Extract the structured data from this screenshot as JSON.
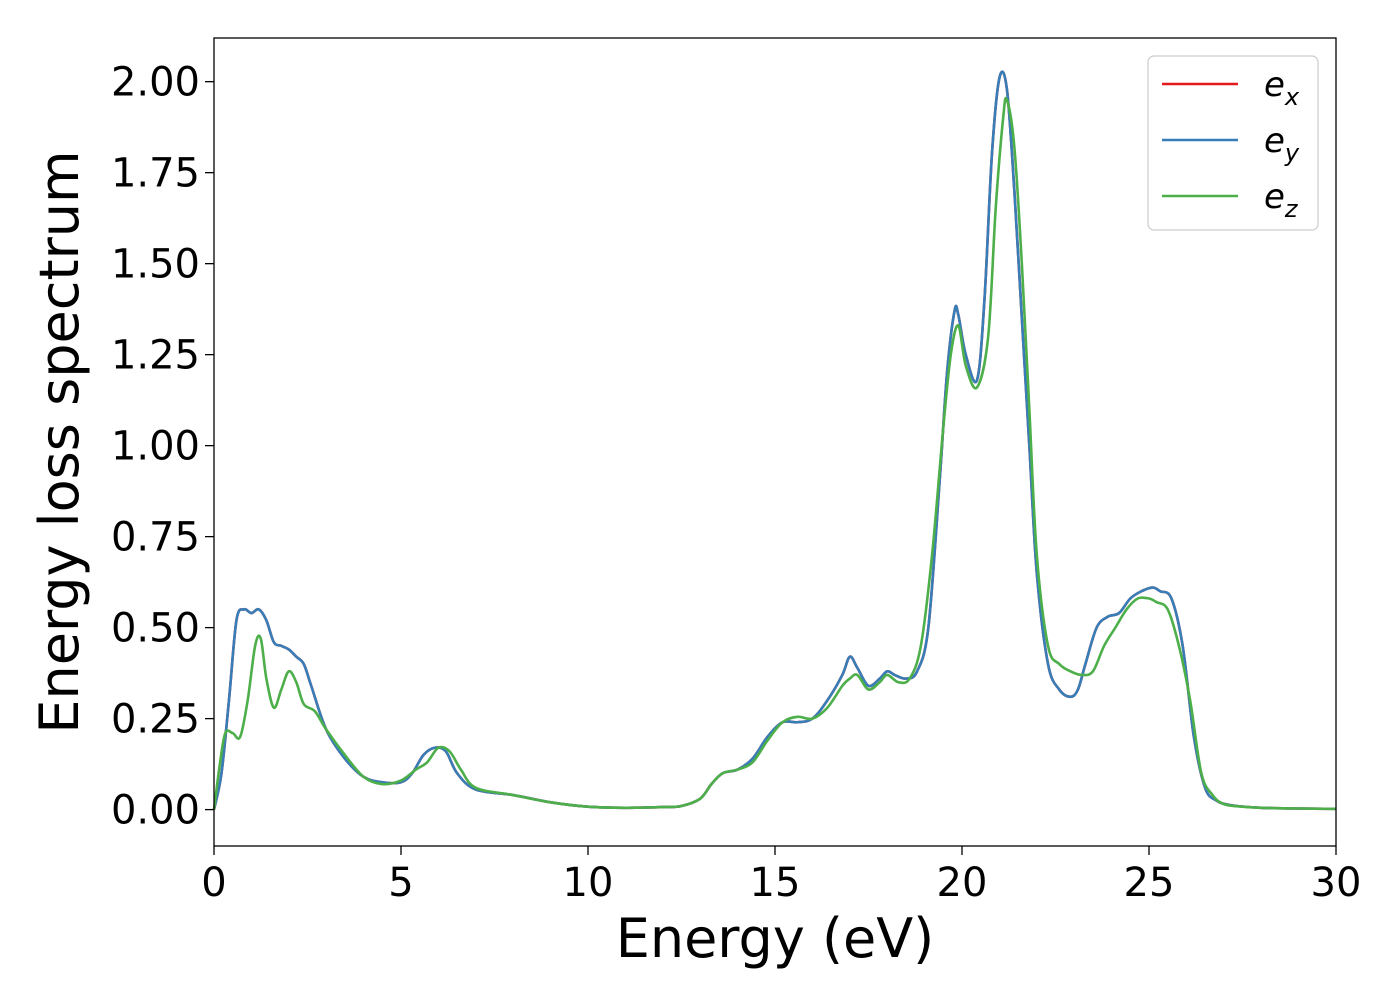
{
  "chart_data": {
    "type": "line",
    "title": "",
    "xlabel": "Energy (eV)",
    "ylabel": "Energy loss spectrum",
    "xlim": [
      0,
      30
    ],
    "ylim": [
      -0.1,
      2.12
    ],
    "xticks": [
      "0",
      "5",
      "10",
      "15",
      "20",
      "25",
      "30"
    ],
    "yticks": [
      "0.00",
      "0.25",
      "0.50",
      "0.75",
      "1.00",
      "1.25",
      "1.50",
      "1.75",
      "2.00"
    ],
    "grid": false,
    "legend_position": "top-right",
    "series": [
      {
        "name": "e_x",
        "legend_main": "e",
        "legend_sub": "x",
        "color": "#e41a1c",
        "x": [
          0,
          0.2,
          0.4,
          0.6,
          0.8,
          1.0,
          1.2,
          1.4,
          1.6,
          1.8,
          2.0,
          2.2,
          2.4,
          2.6,
          3.0,
          3.5,
          4.0,
          4.5,
          5.0,
          5.3,
          5.6,
          5.9,
          6.2,
          6.5,
          7.0,
          8.0,
          9.0,
          10.0,
          11.0,
          12.0,
          12.5,
          13.0,
          13.3,
          13.6,
          14.0,
          14.4,
          14.8,
          15.2,
          15.6,
          16.0,
          16.4,
          16.8,
          17.0,
          17.2,
          17.5,
          17.8,
          18.0,
          18.2,
          18.5,
          18.8,
          19.1,
          19.4,
          19.6,
          19.8,
          19.9,
          20.1,
          20.4,
          20.6,
          20.8,
          21.0,
          21.2,
          21.4,
          21.6,
          21.8,
          22.0,
          22.3,
          22.6,
          22.9,
          23.1,
          23.3,
          23.6,
          23.9,
          24.2,
          24.5,
          24.8,
          25.1,
          25.3,
          25.6,
          25.9,
          26.2,
          26.5,
          26.8,
          27.2,
          28.0,
          29.0,
          30.0
        ],
        "values": [
          0.0,
          0.1,
          0.3,
          0.52,
          0.55,
          0.54,
          0.55,
          0.52,
          0.46,
          0.45,
          0.44,
          0.42,
          0.4,
          0.34,
          0.22,
          0.14,
          0.09,
          0.075,
          0.075,
          0.1,
          0.15,
          0.17,
          0.16,
          0.1,
          0.055,
          0.04,
          0.02,
          0.008,
          0.005,
          0.007,
          0.01,
          0.03,
          0.07,
          0.1,
          0.11,
          0.14,
          0.2,
          0.24,
          0.24,
          0.25,
          0.3,
          0.37,
          0.42,
          0.39,
          0.34,
          0.36,
          0.38,
          0.37,
          0.36,
          0.38,
          0.5,
          0.9,
          1.2,
          1.37,
          1.36,
          1.25,
          1.18,
          1.4,
          1.8,
          2.01,
          1.98,
          1.7,
          1.35,
          1.0,
          0.65,
          0.4,
          0.33,
          0.31,
          0.33,
          0.4,
          0.5,
          0.53,
          0.54,
          0.58,
          0.6,
          0.61,
          0.6,
          0.58,
          0.45,
          0.2,
          0.06,
          0.025,
          0.012,
          0.005,
          0.003,
          0.002
        ]
      },
      {
        "name": "e_y",
        "legend_main": "e",
        "legend_sub": "y",
        "color": "#377eb8",
        "x": [
          0,
          0.2,
          0.4,
          0.6,
          0.8,
          1.0,
          1.2,
          1.4,
          1.6,
          1.8,
          2.0,
          2.2,
          2.4,
          2.6,
          3.0,
          3.5,
          4.0,
          4.5,
          5.0,
          5.3,
          5.6,
          5.9,
          6.2,
          6.5,
          7.0,
          8.0,
          9.0,
          10.0,
          11.0,
          12.0,
          12.5,
          13.0,
          13.3,
          13.6,
          14.0,
          14.4,
          14.8,
          15.2,
          15.6,
          16.0,
          16.4,
          16.8,
          17.0,
          17.2,
          17.5,
          17.8,
          18.0,
          18.2,
          18.5,
          18.8,
          19.1,
          19.4,
          19.6,
          19.8,
          19.9,
          20.1,
          20.4,
          20.6,
          20.8,
          21.0,
          21.2,
          21.4,
          21.6,
          21.8,
          22.0,
          22.3,
          22.6,
          22.9,
          23.1,
          23.3,
          23.6,
          23.9,
          24.2,
          24.5,
          24.8,
          25.1,
          25.3,
          25.6,
          25.9,
          26.2,
          26.5,
          26.8,
          27.2,
          28.0,
          29.0,
          30.0
        ],
        "values": [
          0.0,
          0.1,
          0.3,
          0.52,
          0.55,
          0.54,
          0.55,
          0.52,
          0.46,
          0.45,
          0.44,
          0.42,
          0.4,
          0.34,
          0.22,
          0.14,
          0.09,
          0.075,
          0.075,
          0.1,
          0.15,
          0.17,
          0.16,
          0.1,
          0.055,
          0.04,
          0.02,
          0.008,
          0.005,
          0.007,
          0.01,
          0.03,
          0.07,
          0.1,
          0.11,
          0.14,
          0.2,
          0.24,
          0.24,
          0.25,
          0.3,
          0.37,
          0.42,
          0.39,
          0.34,
          0.36,
          0.38,
          0.37,
          0.36,
          0.38,
          0.5,
          0.9,
          1.2,
          1.37,
          1.36,
          1.25,
          1.18,
          1.4,
          1.8,
          2.01,
          1.98,
          1.7,
          1.35,
          1.0,
          0.65,
          0.4,
          0.33,
          0.31,
          0.33,
          0.4,
          0.5,
          0.53,
          0.54,
          0.58,
          0.6,
          0.61,
          0.6,
          0.58,
          0.45,
          0.2,
          0.06,
          0.025,
          0.012,
          0.005,
          0.003,
          0.002
        ]
      },
      {
        "name": "e_z",
        "legend_main": "e",
        "legend_sub": "z",
        "color": "#4daf4a",
        "x": [
          0,
          0.15,
          0.3,
          0.5,
          0.7,
          0.9,
          1.1,
          1.25,
          1.4,
          1.6,
          1.8,
          2.0,
          2.2,
          2.4,
          2.7,
          3.0,
          3.5,
          4.0,
          4.5,
          5.0,
          5.4,
          5.7,
          6.0,
          6.3,
          6.6,
          7.0,
          8.0,
          9.0,
          10.0,
          11.0,
          12.0,
          12.5,
          13.0,
          13.3,
          13.6,
          14.0,
          14.4,
          14.8,
          15.2,
          15.6,
          16.0,
          16.4,
          16.8,
          17.0,
          17.2,
          17.5,
          17.8,
          18.0,
          18.3,
          18.6,
          18.9,
          19.2,
          19.5,
          19.7,
          19.9,
          20.1,
          20.4,
          20.7,
          20.9,
          21.1,
          21.2,
          21.4,
          21.6,
          21.8,
          22.0,
          22.3,
          22.6,
          22.9,
          23.2,
          23.5,
          23.8,
          24.1,
          24.4,
          24.7,
          25.0,
          25.2,
          25.5,
          25.8,
          26.1,
          26.4,
          26.7,
          27.0,
          27.5,
          28.0,
          29.0,
          30.0
        ],
        "values": [
          0.0,
          0.12,
          0.21,
          0.21,
          0.2,
          0.3,
          0.45,
          0.47,
          0.36,
          0.28,
          0.33,
          0.38,
          0.35,
          0.29,
          0.27,
          0.22,
          0.15,
          0.09,
          0.07,
          0.08,
          0.11,
          0.13,
          0.17,
          0.16,
          0.11,
          0.06,
          0.04,
          0.02,
          0.008,
          0.005,
          0.007,
          0.01,
          0.03,
          0.07,
          0.1,
          0.11,
          0.13,
          0.19,
          0.24,
          0.255,
          0.25,
          0.28,
          0.34,
          0.36,
          0.37,
          0.33,
          0.35,
          0.37,
          0.35,
          0.36,
          0.45,
          0.7,
          1.05,
          1.25,
          1.33,
          1.22,
          1.16,
          1.3,
          1.65,
          1.9,
          1.95,
          1.82,
          1.5,
          1.1,
          0.7,
          0.45,
          0.4,
          0.38,
          0.37,
          0.38,
          0.45,
          0.5,
          0.55,
          0.58,
          0.58,
          0.57,
          0.55,
          0.45,
          0.3,
          0.1,
          0.04,
          0.015,
          0.008,
          0.005,
          0.003,
          0.002
        ]
      }
    ]
  }
}
